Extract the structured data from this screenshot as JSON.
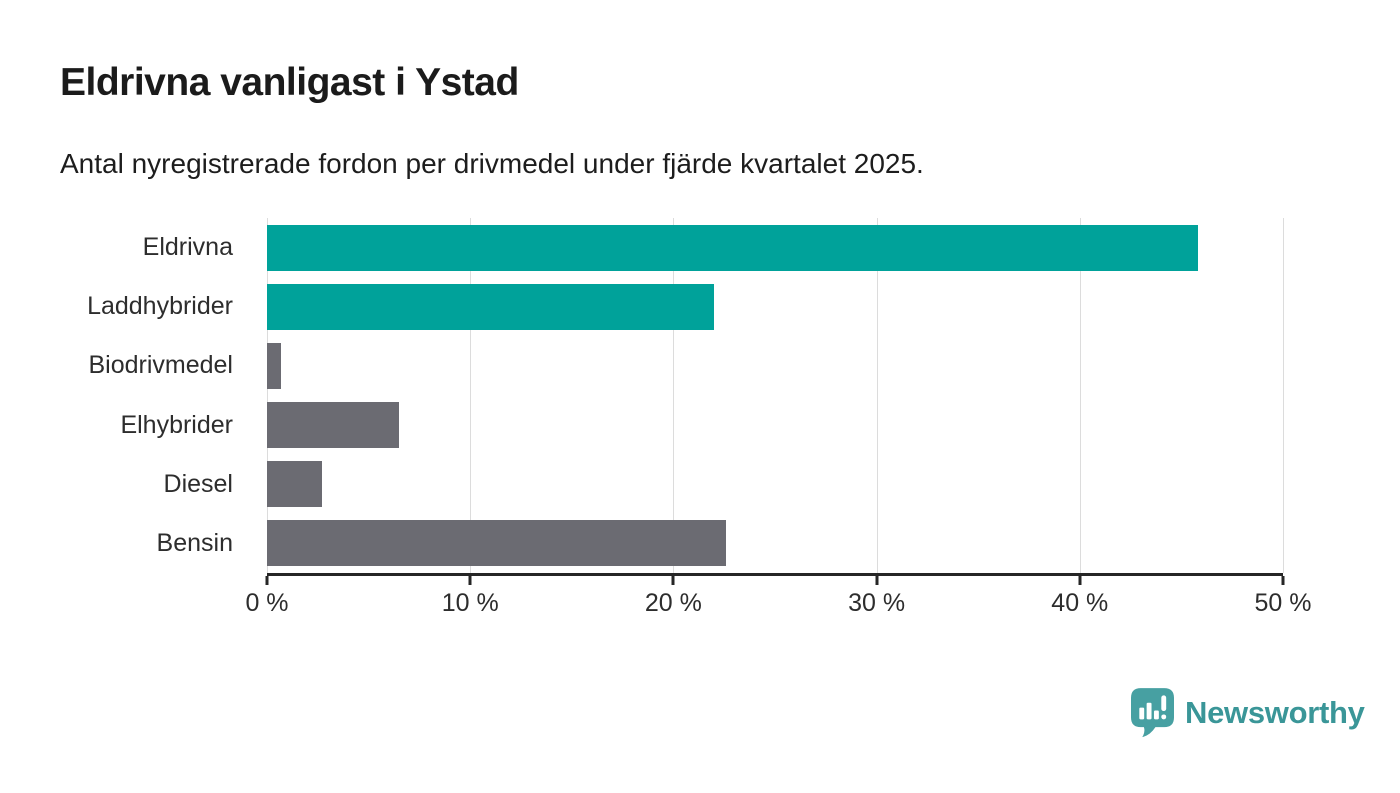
{
  "page": {
    "background": "#FFFFFF"
  },
  "chart_data": {
    "type": "bar",
    "orientation": "horizontal",
    "title": "Eldrivna vanligast i Ystad",
    "subtitle": "Antal nyregistrerade fordon per drivmedel under fjärde kvartalet 2025.",
    "categories": [
      "Eldrivna",
      "Laddhybrider",
      "Biodrivmedel",
      "Elhybrider",
      "Diesel",
      "Bensin"
    ],
    "values": [
      45.8,
      22.0,
      0.7,
      6.5,
      2.7,
      22.6
    ],
    "unit": "%",
    "xlim": [
      0,
      50
    ],
    "xticks": [
      {
        "value": 0,
        "label": "0 %"
      },
      {
        "value": 10,
        "label": "10 %"
      },
      {
        "value": 20,
        "label": "20 %"
      },
      {
        "value": 30,
        "label": "30 %"
      },
      {
        "value": 40,
        "label": "40 %"
      },
      {
        "value": 50,
        "label": "50 %"
      }
    ],
    "grid": "vertical",
    "legend": "none",
    "bar_color_roles": [
      "accent",
      "accent",
      "muted",
      "muted",
      "muted",
      "muted"
    ],
    "colors": {
      "accent": "#00A29A",
      "muted": "#6B6B72",
      "gridline": "#DCDCDC",
      "axis": "#262626",
      "text": "#2D2D2D"
    }
  },
  "branding": {
    "name": "Newsworthy",
    "logo_icon": "newsworthy-speech-bubble-chart-icon",
    "color": "#3A9698",
    "icon_color": "#47A0A2"
  }
}
